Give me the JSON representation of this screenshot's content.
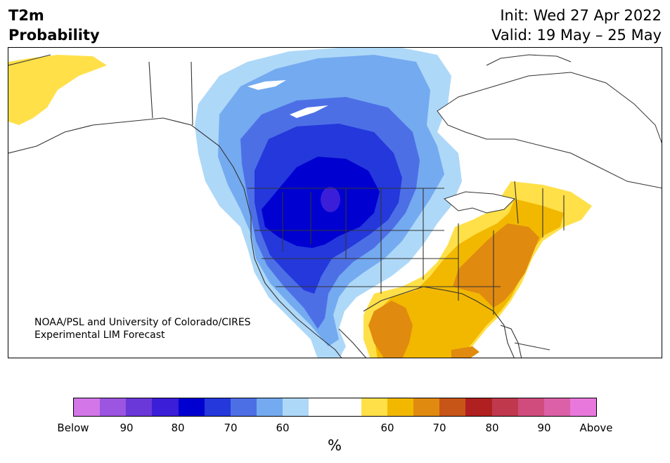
{
  "title": {
    "left_line1": "T2m",
    "left_line2": "Probability",
    "init": "Init: Wed 27 Apr 2022",
    "valid": "Valid: 19 May – 25 May"
  },
  "credit": {
    "line1": "NOAA/PSL and University of Colorado/CIRES",
    "line2": "Experimental LIM Forecast"
  },
  "colorbar": {
    "colors": [
      "#d376e8",
      "#9b55e0",
      "#6a38d8",
      "#3b1ed8",
      "#0000d0",
      "#2438dc",
      "#4d6fe6",
      "#74aaf0",
      "#aed8f8",
      "#ffffff",
      "#ffffff",
      "#ffe048",
      "#f2b800",
      "#e08a10",
      "#c85518",
      "#b02020",
      "#c0384c",
      "#d04c7c",
      "#dc60a8",
      "#e878dc"
    ],
    "tick_labels": [
      "Below",
      "90",
      "80",
      "70",
      "60",
      "60",
      "70",
      "80",
      "90",
      "Above"
    ],
    "unit": "%"
  },
  "legend_colors": {
    "below_light": "#aed8f8",
    "below_mid": "#74aaf0",
    "below_60": "#4d6fe6",
    "below_70": "#2438dc",
    "below_80": "#0000d0",
    "below_90": "#3b1ed8",
    "above_light": "#ffe048",
    "above_60": "#f2b800",
    "above_70": "#e08a10"
  }
}
